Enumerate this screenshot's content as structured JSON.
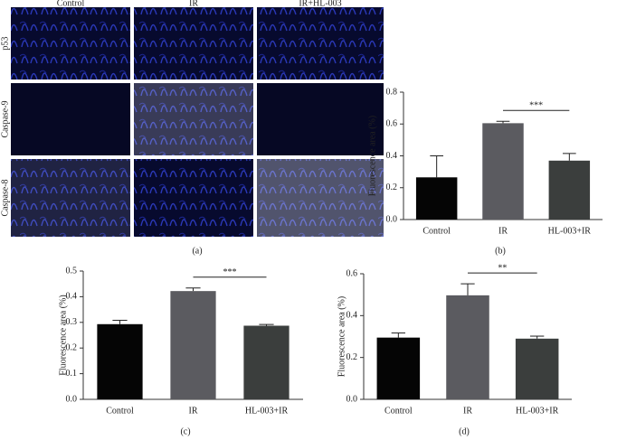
{
  "image_grid": {
    "columns": [
      "Control",
      "IR",
      "IR+HL-003"
    ],
    "rows": [
      "p53",
      "Caspase-9",
      "Caspase-8"
    ],
    "label": "(a)"
  },
  "chart_data": [
    {
      "type": "bar",
      "label": "(b)",
      "ylabel": "Fluorescence area (%)",
      "categories": [
        "Control",
        "IR",
        "HL-003+IR"
      ],
      "values": [
        0.265,
        0.605,
        0.37
      ],
      "errors": [
        0.135,
        0.012,
        0.045
      ],
      "colors": [
        "#050505",
        "#5b5b60",
        "#3b3e3d"
      ],
      "annotation": "***",
      "ylim": [
        0,
        0.8
      ],
      "yticks": [
        {
          "value": 0,
          "label": "0.0"
        },
        0.2,
        0.4,
        0.6,
        0.8
      ]
    },
    {
      "type": "bar",
      "label": "(c)",
      "ylabel": "Fluorescence area (%)",
      "categories": [
        "Control",
        "IR",
        "HL-003+IR"
      ],
      "values": [
        0.293,
        0.422,
        0.287
      ],
      "errors": [
        0.015,
        0.012,
        0.005
      ],
      "colors": [
        "#050505",
        "#5b5b60",
        "#3b3e3d"
      ],
      "annotation": "***",
      "ylim": [
        0,
        0.5
      ],
      "yticks": [
        {
          "value": 0,
          "label": "0.0"
        },
        0.1,
        0.2,
        0.3,
        0.4,
        0.5
      ]
    },
    {
      "type": "bar",
      "label": "(d)",
      "ylabel": "Fluorescence area (%)",
      "categories": [
        "Control",
        "IR",
        "HL-003+IR"
      ],
      "values": [
        0.295,
        0.497,
        0.29
      ],
      "errors": [
        0.022,
        0.055,
        0.012
      ],
      "colors": [
        "#050505",
        "#5b5b60",
        "#3b3e3d"
      ],
      "annotation": "**",
      "ylim": [
        0,
        0.6
      ],
      "yticks": [
        {
          "value": 0,
          "label": "0.0"
        },
        0.2,
        0.4,
        0.6
      ]
    }
  ]
}
